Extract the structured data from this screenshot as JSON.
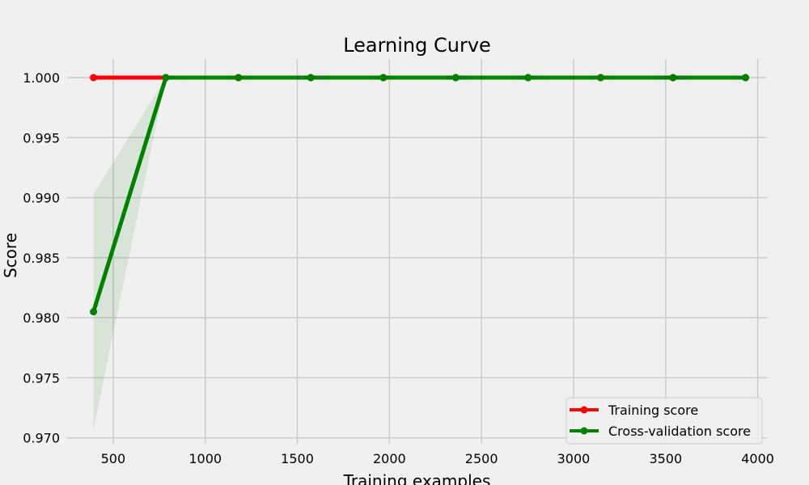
{
  "chart_data": {
    "type": "line",
    "title": "Learning Curve",
    "xlabel": "Training examples",
    "ylabel": "Score",
    "xlim": [
      250,
      4050
    ],
    "ylim": [
      0.9695,
      1.00155
    ],
    "xticks": [
      500,
      1000,
      1500,
      2000,
      2500,
      3000,
      3500,
      4000
    ],
    "yticks": [
      0.97,
      0.975,
      0.98,
      0.985,
      0.99,
      0.995,
      1.0
    ],
    "grid": true,
    "legend_position": "lower-right",
    "x": [
      393,
      786,
      1180,
      1573,
      1967,
      2360,
      2753,
      3147,
      3540,
      3934
    ],
    "series": [
      {
        "name": "Training score",
        "color": "#ff0000",
        "values": [
          1.0,
          1.0,
          1.0,
          1.0,
          1.0,
          1.0,
          1.0,
          1.0,
          1.0,
          1.0
        ],
        "band_lower": [
          1.0,
          1.0,
          1.0,
          1.0,
          1.0,
          1.0,
          1.0,
          1.0,
          1.0,
          1.0
        ],
        "band_upper": [
          1.0,
          1.0,
          1.0,
          1.0,
          1.0,
          1.0,
          1.0,
          1.0,
          1.0,
          1.0
        ]
      },
      {
        "name": "Cross-validation score",
        "color": "#008000",
        "values": [
          0.9805,
          1.0,
          1.0,
          1.0,
          1.0,
          1.0,
          1.0,
          1.0,
          1.0,
          1.0
        ],
        "band_lower": [
          0.9707,
          1.0,
          1.0,
          1.0,
          1.0,
          1.0,
          1.0,
          1.0,
          1.0,
          1.0
        ],
        "band_upper": [
          0.9903,
          1.0,
          1.0,
          1.0,
          1.0,
          1.0,
          1.0,
          1.0,
          1.0,
          1.0
        ]
      }
    ]
  }
}
